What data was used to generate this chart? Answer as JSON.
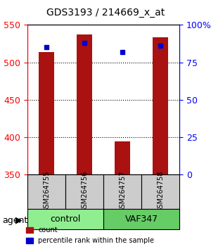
{
  "title": "GDS3193 / 214669_x_at",
  "samples": [
    "GSM264755",
    "GSM264756",
    "GSM264757",
    "GSM264758"
  ],
  "groups": [
    "control",
    "control",
    "VAF347",
    "VAF347"
  ],
  "group_labels": [
    "control",
    "VAF347"
  ],
  "group_colors": [
    "#90EE90",
    "#4CBB4C"
  ],
  "count_values": [
    514,
    537,
    394,
    533
  ],
  "percentile_values": [
    85,
    88,
    82,
    86
  ],
  "ymin": 350,
  "ymax": 550,
  "yticks_left": [
    350,
    400,
    450,
    500,
    550
  ],
  "yticks_right": [
    0,
    25,
    50,
    75,
    100
  ],
  "bar_color": "#AA1111",
  "dot_color": "#0000CC",
  "bar_width": 0.4,
  "bg_color": "#FFFFFF",
  "plot_bg": "#FFFFFF",
  "xlabel_color": "red",
  "ylabel_right_color": "blue",
  "legend_labels": [
    "count",
    "percentile rank within the sample"
  ]
}
